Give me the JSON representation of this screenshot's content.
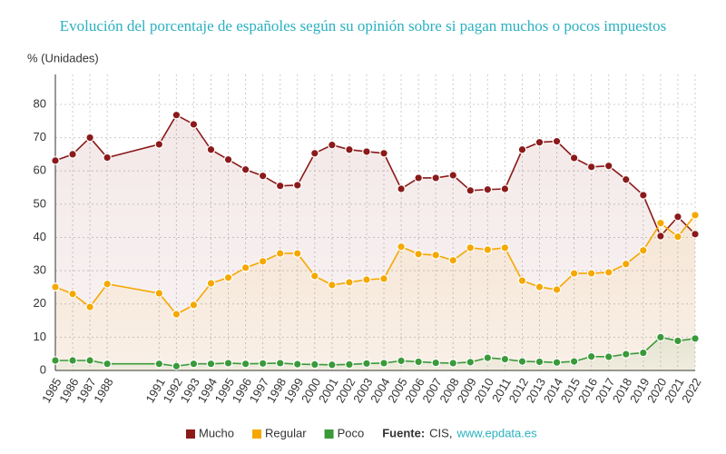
{
  "chart_data": {
    "type": "line",
    "title": "Evolución del porcentaje de españoles según su opinión sobre si pagan muchos o pocos impuestos",
    "y_label": "% (Unidades)",
    "x": [
      1985,
      1986,
      1987,
      1988,
      1991,
      1992,
      1993,
      1994,
      1995,
      1996,
      1997,
      1998,
      1999,
      2000,
      2001,
      2002,
      2003,
      2004,
      2005,
      2006,
      2007,
      2008,
      2009,
      2010,
      2011,
      2012,
      2013,
      2014,
      2015,
      2016,
      2017,
      2018,
      2019,
      2020,
      2021,
      2022
    ],
    "xlim": [
      1985,
      2022
    ],
    "xticks": [
      1985,
      1986,
      1987,
      1988,
      1991,
      1992,
      1993,
      1994,
      1995,
      1996,
      1997,
      1998,
      1999,
      2000,
      2001,
      2002,
      2003,
      2004,
      2005,
      2006,
      2007,
      2008,
      2009,
      2010,
      2011,
      2012,
      2013,
      2014,
      2015,
      2016,
      2017,
      2018,
      2019,
      2020,
      2021,
      2022
    ],
    "ylim": [
      0,
      89
    ],
    "yticks": [
      0,
      10,
      20,
      30,
      40,
      50,
      60,
      70,
      80
    ],
    "grid": true,
    "series": [
      {
        "name": "Mucho",
        "color": "#8b1a1a",
        "values": [
          63.1,
          65,
          70,
          64,
          68,
          76.8,
          74,
          66.4,
          63.4,
          60.4,
          58.5,
          55.5,
          55.7,
          65.3,
          67.8,
          66.4,
          65.8,
          65.3,
          54.6,
          57.9,
          57.9,
          58.7,
          54.1,
          54.4,
          54.6,
          66.4,
          68.6,
          68.9,
          63.9,
          61.2,
          61.5,
          57.4,
          52.7,
          40.4,
          46.2,
          41
        ]
      },
      {
        "name": "Regular",
        "color": "#f5a800",
        "values": [
          25.1,
          23,
          19.1,
          26,
          23.2,
          16.9,
          19.7,
          26.2,
          27.9,
          30.9,
          32.8,
          35.2,
          35.2,
          28.4,
          25.7,
          26.5,
          27.3,
          27.6,
          37.2,
          35,
          34.7,
          33.1,
          36.9,
          36.3,
          36.9,
          27,
          25.1,
          24.3,
          29.2,
          29.2,
          29.5,
          32,
          36.1,
          44.3,
          40.2,
          46.7
        ]
      },
      {
        "name": "Poco",
        "color": "#3a9a3a",
        "values": [
          3,
          3,
          3,
          2,
          2,
          1.3,
          2,
          2,
          2.2,
          2,
          2.1,
          2.2,
          1.9,
          1.8,
          1.7,
          1.8,
          2.1,
          2.2,
          2.9,
          2.6,
          2.3,
          2.2,
          2.5,
          3.8,
          3.4,
          2.7,
          2.6,
          2.4,
          2.7,
          4.2,
          4.1,
          4.9,
          5.3,
          10,
          8.9,
          9.6
        ]
      }
    ],
    "source_label": "Fuente:",
    "source": "CIS,",
    "source_link": "www.epdata.es"
  }
}
